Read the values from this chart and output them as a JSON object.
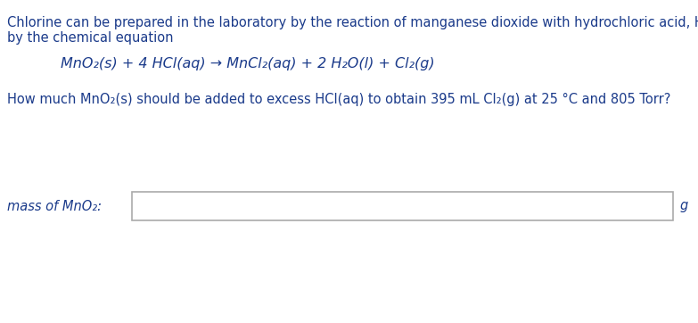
{
  "bg_color": "#ffffff",
  "text_color": "#1a3a8a",
  "line1": "Chlorine can be prepared in the laboratory by the reaction of manganese dioxide with hydrochloric acid, HCl(aq), as described",
  "line2": "by the chemical equation",
  "equation": "MnO₂(s) + 4 HCl(aq) → MnCl₂(aq) + 2 H₂O(l) + Cl₂(g)",
  "question": "How much MnO₂(s) should be added to excess HCl(aq) to obtain 395 mL Cl₂(g) at 25 °C and 805 Torr?",
  "label": "mass of MnO₂:",
  "unit": "g",
  "font_size": 10.5,
  "eq_font_size": 11.5,
  "text_color_normal": "#1a3a8a"
}
